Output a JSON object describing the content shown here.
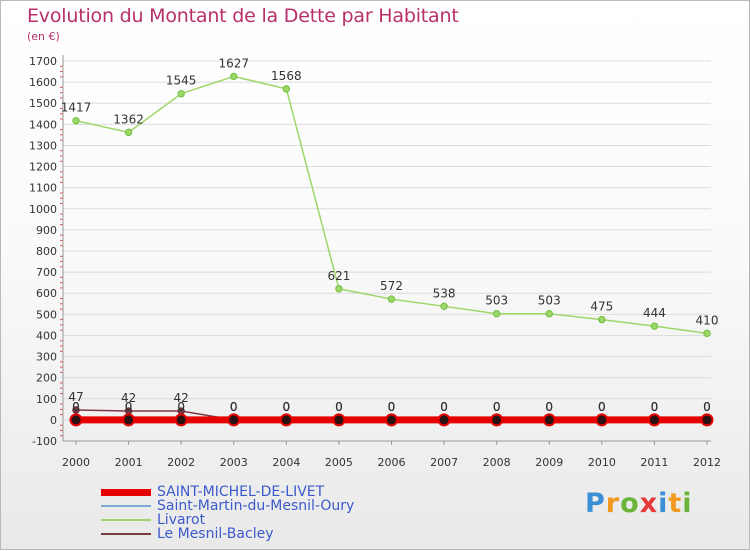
{
  "title": "Evolution du Montant de la Dette par Habitant",
  "unit": "(en €)",
  "logo": {
    "text": "Proxiti",
    "colors": [
      "#3a8fd6",
      "#f29a1f",
      "#6ab43a",
      "#e43a3a",
      "#3a8fd6",
      "#f29a1f",
      "#6ab43a"
    ]
  },
  "legend": [
    {
      "name": "SAINT-MICHEL-DE-LIVET",
      "color": "#e60000",
      "thickness": 7
    },
    {
      "name": "Saint-Martin-du-Mesnil-Oury",
      "color": "#7ba7d6",
      "thickness": 2
    },
    {
      "name": "Livarot",
      "color": "#9fd66a",
      "thickness": 2
    },
    {
      "name": "Le Mesnil-Bacley",
      "color": "#7a3a44",
      "thickness": 2
    }
  ],
  "chart_data": {
    "type": "line",
    "title": "Evolution du Montant de la Dette par Habitant",
    "ylabel": "(en €)",
    "xlabel": "",
    "x": [
      "2000",
      "2001",
      "2002",
      "2003",
      "2004",
      "2005",
      "2006",
      "2007",
      "2008",
      "2009",
      "2010",
      "2011",
      "2012"
    ],
    "ylim": [
      -100,
      1700
    ],
    "yticks": [
      "-100",
      "0",
      "100",
      "200",
      "300",
      "400",
      "500",
      "600",
      "700",
      "800",
      "900",
      "1000",
      "1100",
      "1200",
      "1300",
      "1400",
      "1500",
      "1600",
      "1700"
    ],
    "series": [
      {
        "name": "Livarot",
        "color": "#9fd66a",
        "marker": "#6fc040",
        "values": [
          1417,
          1362,
          1545,
          1627,
          1568,
          621,
          572,
          538,
          503,
          503,
          475,
          444,
          410
        ],
        "labels": [
          "1417",
          "1362",
          "1545",
          "1627",
          "1568",
          "621",
          "572",
          "538",
          "503",
          "503",
          "475",
          "444",
          "410"
        ]
      },
      {
        "name": "Le Mesnil-Bacley",
        "color": "#7a3a44",
        "marker": "#5a2a30",
        "values": [
          47,
          42,
          42,
          0,
          0,
          0,
          0,
          0,
          0,
          0,
          0,
          0,
          0
        ],
        "labels": [
          "47",
          "42",
          "42",
          "0",
          "0",
          "0",
          "0",
          "0",
          "0",
          "0",
          "0",
          "0",
          "0"
        ]
      },
      {
        "name": "Saint-Martin-du-Mesnil-Oury",
        "color": "#7ba7d6",
        "marker": "#3a7fd6",
        "values": [
          0,
          0,
          0,
          0,
          0,
          0,
          0,
          0,
          0,
          0,
          0,
          0,
          0
        ],
        "labels": [
          "0",
          "0",
          "0",
          "0",
          "0",
          "0",
          "0",
          "0",
          "0",
          "0",
          "0",
          "0",
          "0"
        ]
      },
      {
        "name": "SAINT-MICHEL-DE-LIVET",
        "color": "#e60000",
        "marker": "#b00000",
        "values": [
          0,
          0,
          0,
          0,
          0,
          0,
          0,
          0,
          0,
          0,
          0,
          0,
          0
        ],
        "labels": [
          "0",
          "0",
          "0",
          "0",
          "0",
          "0",
          "0",
          "0",
          "0",
          "0",
          "0",
          "0",
          "0"
        ]
      }
    ]
  }
}
